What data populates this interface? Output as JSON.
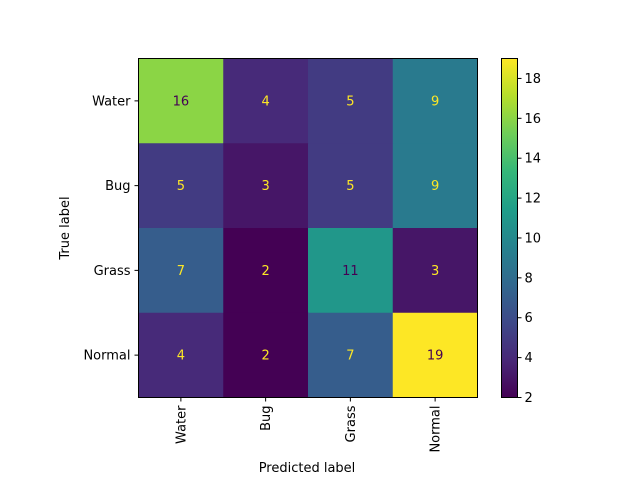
{
  "chart_data": {
    "type": "heatmap",
    "title": "",
    "xlabel": "Predicted label",
    "ylabel": "True label",
    "row_labels": [
      "Water",
      "Bug",
      "Grass",
      "Normal"
    ],
    "col_labels": [
      "Water",
      "Bug",
      "Grass",
      "Normal"
    ],
    "matrix": [
      [
        16,
        4,
        5,
        9
      ],
      [
        5,
        3,
        5,
        9
      ],
      [
        7,
        2,
        11,
        3
      ],
      [
        4,
        2,
        7,
        19
      ]
    ],
    "colormap": "viridis",
    "vmin": 2,
    "vmax": 19,
    "colorbar_ticks": [
      2,
      4,
      6,
      8,
      10,
      12,
      14,
      16,
      18
    ]
  }
}
